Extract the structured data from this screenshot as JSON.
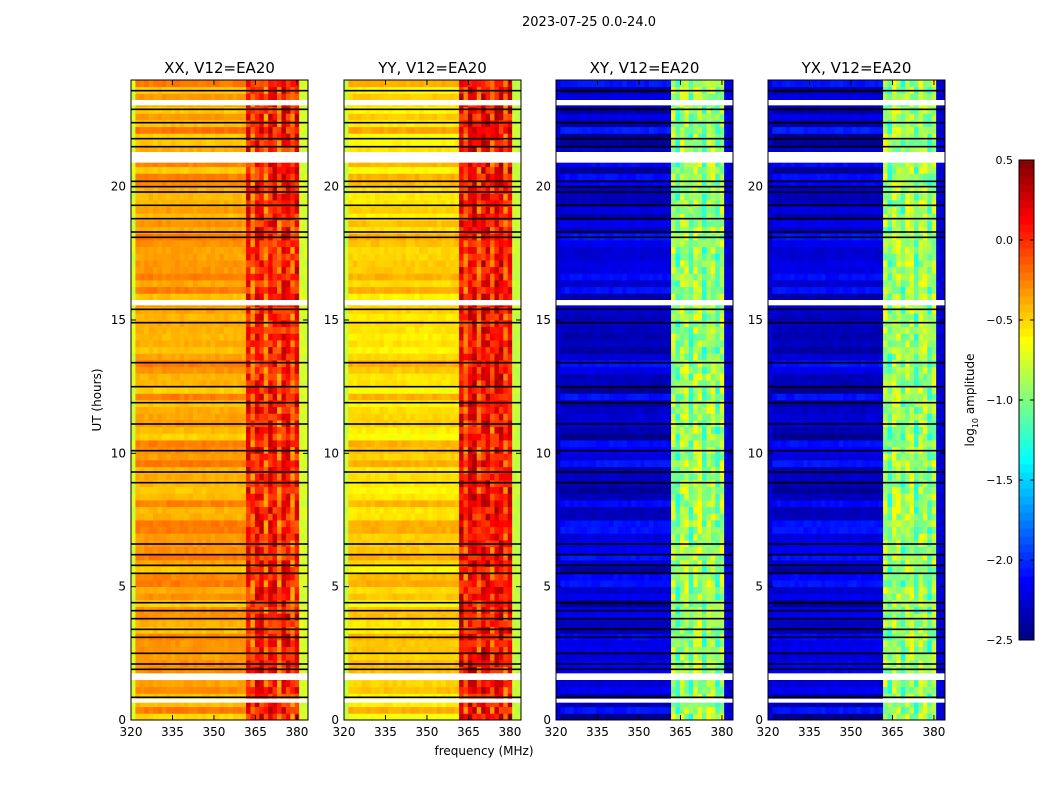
{
  "suptitle": "2023-07-25 0.0-24.0",
  "chart_data": {
    "type": "heatmap",
    "xlabel": "frequency (MHz)",
    "ylabel": "UT (hours)",
    "xlim": [
      320,
      384
    ],
    "ylim": [
      0,
      24
    ],
    "xticks": [
      320,
      335,
      350,
      365,
      380
    ],
    "yticks": [
      0,
      5,
      10,
      15,
      20
    ],
    "colorbar": {
      "label_main": "log",
      "label_sub": "10",
      "label_rest": " amplitude",
      "range": [
        -2.5,
        0.5
      ],
      "ticks": [
        0.5,
        0.0,
        -0.5,
        -1.0,
        -1.5,
        -2.0,
        -2.5
      ],
      "tick_labels": [
        "0.5",
        "0.0",
        "−0.5",
        "−1.0",
        "−1.5",
        "−2.0",
        "−2.5"
      ],
      "colormap": "jet"
    },
    "panels": [
      {
        "title": "XX, V12=EA20",
        "base_level": -0.4,
        "band_level": 0.1,
        "edge_level": -0.8
      },
      {
        "title": "YY, V12=EA20",
        "base_level": -0.55,
        "band_level": 0.15,
        "edge_level": -0.85
      },
      {
        "title": "XY, V12=EA20",
        "base_level": -2.3,
        "band_level": -0.85,
        "edge_level": -2.3
      },
      {
        "title": "YX, V12=EA20",
        "base_level": -2.3,
        "band_level": -0.85,
        "edge_level": -2.3
      }
    ],
    "rfi_band_mhz": [
      361,
      380
    ],
    "flagged_intervals_hours": [
      [
        23.05,
        23.25
      ],
      [
        20.9,
        21.3
      ],
      [
        15.55,
        15.75
      ],
      [
        1.5,
        1.75
      ],
      [
        0.65,
        0.8
      ]
    ],
    "black_line_hours": [
      23.6,
      22.9,
      22.4,
      21.8,
      21.5,
      20.2,
      20.0,
      19.8,
      19.3,
      18.8,
      18.3,
      18.1,
      15.4,
      14.9,
      13.4,
      12.5,
      11.9,
      11.1,
      10.1,
      9.3,
      8.9,
      6.6,
      6.2,
      5.8,
      5.5,
      4.4,
      4.1,
      3.8,
      3.4,
      3.1,
      2.5,
      2.1,
      1.9,
      0.85
    ]
  }
}
